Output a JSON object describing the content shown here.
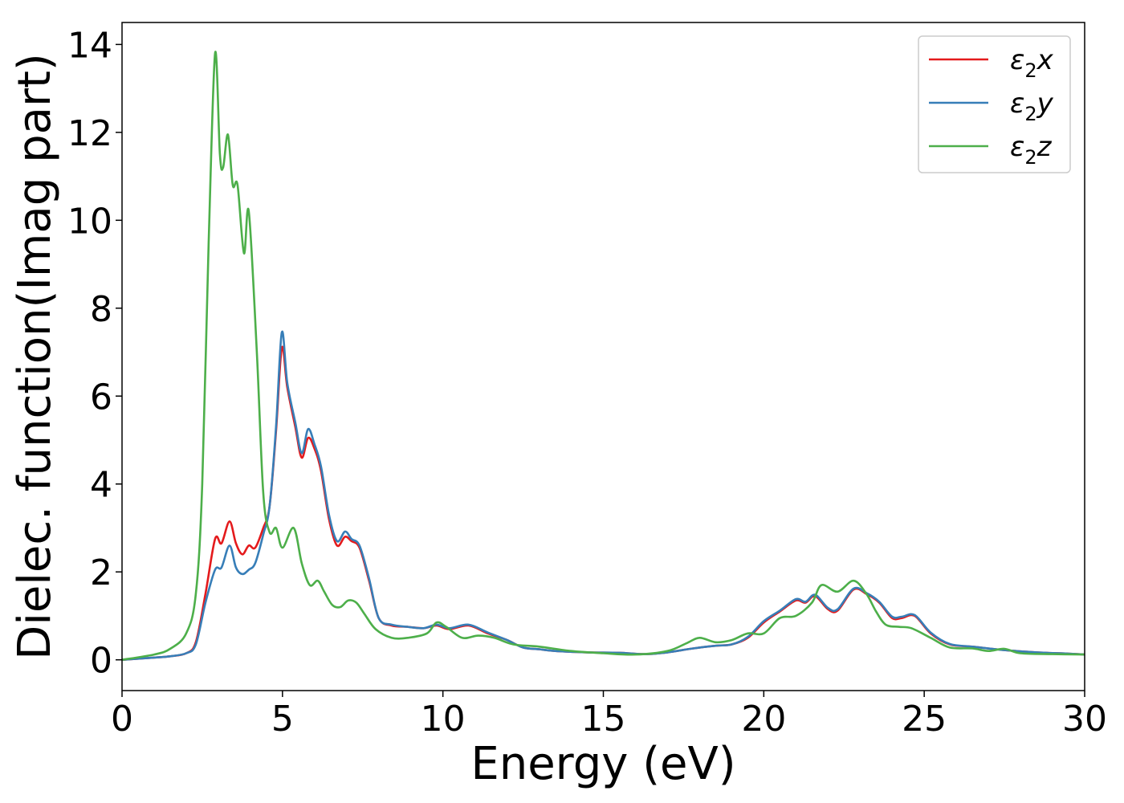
{
  "chart_data": {
    "type": "line",
    "xlabel": "Energy (eV)",
    "ylabel": "Dielec. function(Imag part)",
    "xlim": [
      0,
      30
    ],
    "ylim": [
      -0.7,
      14.5
    ],
    "xticks": [
      "0",
      "5",
      "10",
      "15",
      "20",
      "25",
      "30"
    ],
    "yticks": [
      "0",
      "2",
      "4",
      "6",
      "8",
      "10",
      "12",
      "14"
    ],
    "grid": false,
    "legend_position": "top-right",
    "series": [
      {
        "name": "ε2x",
        "legend_base": "ε",
        "legend_sub": "2",
        "legend_suffix": "x",
        "color": "#e41a1c",
        "x": [
          0,
          1,
          1.5,
          2,
          2.3,
          2.6,
          2.9,
          3.1,
          3.35,
          3.55,
          3.75,
          3.95,
          4.15,
          4.4,
          4.6,
          4.8,
          4.98,
          5.15,
          5.4,
          5.6,
          5.8,
          6.0,
          6.2,
          6.45,
          6.7,
          6.95,
          7.15,
          7.4,
          7.7,
          8.0,
          8.4,
          8.9,
          9.4,
          9.8,
          10.2,
          10.8,
          11.4,
          12.0,
          12.5,
          13.0,
          13.5,
          14.5,
          15.5,
          16.3,
          17.0,
          17.8,
          18.5,
          19.0,
          19.5,
          20.0,
          20.5,
          21.0,
          21.3,
          21.6,
          22.0,
          22.3,
          22.8,
          23.2,
          23.6,
          24.0,
          24.3,
          24.7,
          25.2,
          25.8,
          26.5,
          27.5,
          28.5,
          29.5,
          30
        ],
        "y": [
          0,
          0.05,
          0.08,
          0.15,
          0.4,
          1.5,
          2.75,
          2.65,
          3.15,
          2.65,
          2.4,
          2.6,
          2.55,
          3.0,
          3.5,
          5.2,
          7.1,
          6.2,
          5.3,
          4.6,
          5.05,
          4.8,
          4.3,
          3.2,
          2.6,
          2.8,
          2.7,
          2.55,
          1.8,
          0.95,
          0.78,
          0.75,
          0.72,
          0.78,
          0.7,
          0.78,
          0.6,
          0.45,
          0.28,
          0.24,
          0.2,
          0.17,
          0.16,
          0.13,
          0.17,
          0.26,
          0.32,
          0.35,
          0.5,
          0.85,
          1.1,
          1.35,
          1.3,
          1.45,
          1.15,
          1.12,
          1.6,
          1.5,
          1.3,
          0.95,
          0.95,
          1.0,
          0.6,
          0.35,
          0.3,
          0.22,
          0.17,
          0.14,
          0.12
        ]
      },
      {
        "name": "ε2y",
        "legend_base": "ε",
        "legend_sub": "2",
        "legend_suffix": "y",
        "color": "#377eb8",
        "x": [
          0,
          1,
          1.5,
          2,
          2.3,
          2.6,
          2.9,
          3.1,
          3.35,
          3.55,
          3.75,
          3.95,
          4.15,
          4.4,
          4.6,
          4.8,
          4.98,
          5.15,
          5.4,
          5.6,
          5.8,
          6.0,
          6.2,
          6.45,
          6.7,
          6.95,
          7.15,
          7.4,
          7.7,
          8.0,
          8.4,
          8.9,
          9.4,
          9.8,
          10.2,
          10.8,
          11.4,
          12.0,
          12.5,
          13.0,
          13.5,
          14.5,
          15.5,
          16.3,
          17.0,
          17.8,
          18.5,
          19.0,
          19.5,
          20.0,
          20.5,
          21.0,
          21.3,
          21.6,
          22.0,
          22.3,
          22.8,
          23.2,
          23.6,
          24.0,
          24.3,
          24.7,
          25.2,
          25.8,
          26.5,
          27.5,
          28.5,
          29.5,
          30
        ],
        "y": [
          0,
          0.05,
          0.08,
          0.15,
          0.35,
          1.3,
          2.05,
          2.1,
          2.6,
          2.1,
          1.95,
          2.05,
          2.2,
          2.85,
          3.5,
          5.3,
          7.45,
          6.3,
          5.4,
          4.7,
          5.25,
          4.9,
          4.4,
          3.3,
          2.7,
          2.92,
          2.75,
          2.6,
          1.85,
          0.95,
          0.8,
          0.75,
          0.72,
          0.8,
          0.72,
          0.8,
          0.62,
          0.45,
          0.28,
          0.24,
          0.2,
          0.17,
          0.16,
          0.13,
          0.17,
          0.26,
          0.32,
          0.35,
          0.52,
          0.88,
          1.12,
          1.38,
          1.32,
          1.48,
          1.18,
          1.15,
          1.62,
          1.52,
          1.32,
          0.98,
          0.98,
          1.02,
          0.62,
          0.36,
          0.3,
          0.22,
          0.17,
          0.14,
          0.12
        ]
      },
      {
        "name": "ε2z",
        "legend_base": "ε",
        "legend_sub": "2",
        "legend_suffix": "z",
        "color": "#4daf4a",
        "x": [
          0,
          1,
          1.5,
          2,
          2.3,
          2.5,
          2.7,
          2.9,
          3.05,
          3.15,
          3.3,
          3.45,
          3.6,
          3.8,
          3.95,
          4.2,
          4.4,
          4.6,
          4.8,
          5.0,
          5.35,
          5.6,
          5.85,
          6.1,
          6.3,
          6.55,
          6.8,
          7.05,
          7.3,
          7.55,
          7.9,
          8.4,
          8.9,
          9.5,
          9.8,
          10.1,
          10.6,
          11.1,
          11.6,
          12.2,
          13.0,
          14.0,
          15.0,
          16.0,
          17.0,
          17.6,
          18.0,
          18.5,
          19.0,
          19.5,
          20.0,
          20.5,
          21.0,
          21.5,
          21.8,
          22.3,
          22.8,
          23.2,
          23.5,
          23.8,
          24.2,
          24.6,
          25.2,
          25.8,
          26.5,
          27.0,
          27.5,
          28.0,
          29.0,
          30
        ],
        "y": [
          0,
          0.12,
          0.25,
          0.6,
          1.5,
          4.0,
          9.5,
          13.8,
          11.5,
          11.2,
          11.95,
          10.8,
          10.8,
          9.25,
          10.2,
          7.0,
          3.8,
          2.9,
          3.0,
          2.55,
          3.0,
          2.2,
          1.7,
          1.8,
          1.55,
          1.25,
          1.2,
          1.35,
          1.3,
          1.05,
          0.7,
          0.5,
          0.5,
          0.6,
          0.85,
          0.75,
          0.5,
          0.55,
          0.5,
          0.35,
          0.3,
          0.2,
          0.15,
          0.12,
          0.2,
          0.38,
          0.5,
          0.4,
          0.45,
          0.6,
          0.6,
          0.95,
          1.0,
          1.3,
          1.7,
          1.55,
          1.8,
          1.5,
          1.1,
          0.8,
          0.75,
          0.72,
          0.5,
          0.28,
          0.26,
          0.2,
          0.25,
          0.15,
          0.13,
          0.12
        ]
      }
    ]
  }
}
